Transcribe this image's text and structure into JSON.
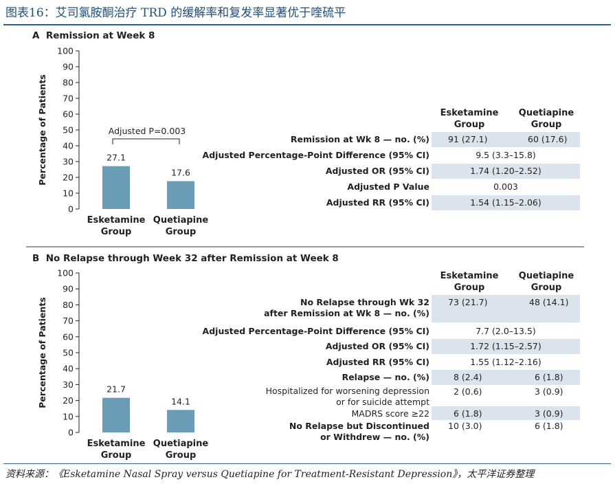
{
  "figure_title": "图表16：艾司氯胺酮治疗 TRD 的缓解率和复发率显著优于喹硫平",
  "source": "资料来源：《Esketamine Nasal Spray versus Quetiapine for Treatment-Resistant Depression》，太平洋证券整理",
  "colors": {
    "bar": "#6a9cb6",
    "shade": "#dbe3ec",
    "title": "#1f4e79"
  },
  "chart_data": [
    {
      "type": "bar",
      "panel": "A",
      "title": "Remission at Week 8",
      "ylabel": "Percentage of Patients",
      "ylim": [
        0,
        100
      ],
      "yticks": [
        "0",
        "10",
        "20",
        "30",
        "40",
        "50",
        "60",
        "70",
        "80",
        "90",
        "100"
      ],
      "categories": [
        "Esketamine\nGroup",
        "Quetiapine\nGroup"
      ],
      "values": [
        27.1,
        17.6
      ],
      "value_labels": [
        "27.1",
        "17.6"
      ],
      "annotation": "Adjusted P=0.003"
    },
    {
      "type": "bar",
      "panel": "B",
      "title": "No Relapse through Week 32 after Remission at Week 8",
      "ylabel": "Percentage of Patients",
      "ylim": [
        0,
        100
      ],
      "yticks": [
        "0",
        "10",
        "20",
        "30",
        "40",
        "50",
        "60",
        "70",
        "80",
        "90",
        "100"
      ],
      "categories": [
        "Esketamine\nGroup",
        "Quetiapine\nGroup"
      ],
      "values": [
        21.7,
        14.1
      ],
      "value_labels": [
        "21.7",
        "14.1"
      ]
    }
  ],
  "table_a": {
    "headers": [
      "Esketamine\nGroup",
      "Quetiapine\nGroup"
    ],
    "rows": [
      {
        "label": "Remission at Wk 8 — no. (%)",
        "esk": "91 (27.1)",
        "que": "60 (17.6)"
      },
      {
        "label": "Adjusted Percentage-Point Difference (95% CI)",
        "combined": "9.5 (3.3–15.8)"
      },
      {
        "label": "Adjusted OR (95% CI)",
        "combined": "1.74 (1.20–2.52)"
      },
      {
        "label": "Adjusted P Value",
        "combined": "0.003"
      },
      {
        "label": "Adjusted RR (95% CI)",
        "combined": "1.54 (1.15–2.06)"
      }
    ]
  },
  "table_b": {
    "headers": [
      "Esketamine\nGroup",
      "Quetiapine\nGroup"
    ],
    "rows": [
      {
        "label": "No Relapse through Wk 32\nafter Remission at Wk 8 — no. (%)",
        "esk": "73 (21.7)",
        "que": "48 (14.1)"
      },
      {
        "label": "Adjusted Percentage-Point Difference (95% CI)",
        "combined": "7.7 (2.0–13.5)"
      },
      {
        "label": "Adjusted OR (95% CI)",
        "combined": "1.72 (1.15–2.57)"
      },
      {
        "label": "Adjusted RR (95% CI)",
        "combined": "1.55 (1.12–2.16)"
      },
      {
        "label": "Relapse — no. (%)",
        "esk": "8 (2.4)",
        "que": "6 (1.8)"
      },
      {
        "label": "Hospitalized for worsening depression\nor for suicide attempt",
        "esk": "2 (0.6)",
        "que": "3 (0.9)"
      },
      {
        "label": "MADRS score ≥22",
        "esk": "6 (1.8)",
        "que": "3 (0.9)"
      },
      {
        "label": "No Relapse but Discontinued\nor Withdrew — no. (%)",
        "esk": "10 (3.0)",
        "que": "6 (1.8)"
      }
    ]
  }
}
